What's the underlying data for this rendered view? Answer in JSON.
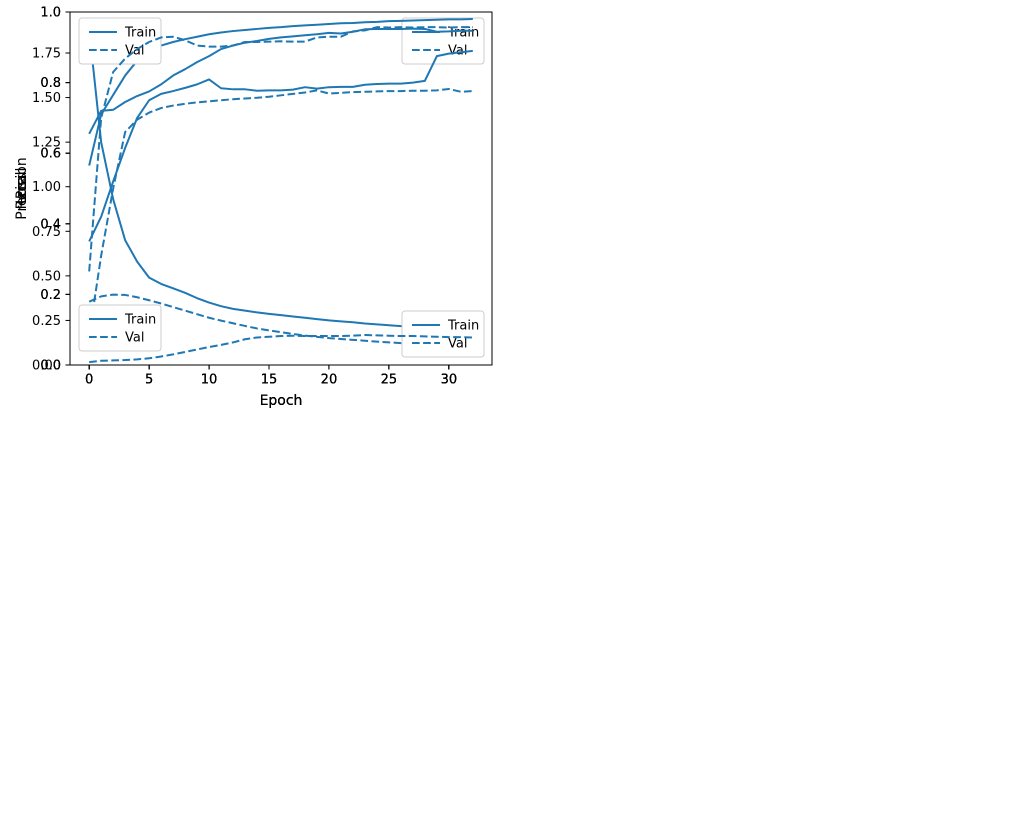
{
  "figure": {
    "background": "#ffffff",
    "description": "2x2 grid of training metric curves"
  },
  "style": {
    "line_color": "#1f77b4",
    "axis_color": "#000000",
    "text_color": "#000000",
    "legend_border": "#cccccc",
    "legend_background": "#ffffff"
  },
  "chart_data": [
    {
      "id": "loss",
      "type": "line",
      "title": "",
      "xlabel": "Epoch",
      "ylabel": "Loss",
      "grid": false,
      "xlim": [
        -1.6,
        33.6
      ],
      "ylim": [
        0.0,
        1.98
      ],
      "xtick_values": [
        0,
        5,
        10,
        15,
        20,
        25,
        30
      ],
      "xtick_labels": [
        "0",
        "5",
        "10",
        "15",
        "20",
        "25",
        "30"
      ],
      "ytick_values": [
        0.0,
        0.25,
        0.5,
        0.75,
        1.0,
        1.25,
        1.5,
        1.75
      ],
      "ytick_labels": [
        "0.00",
        "0.25",
        "0.50",
        "0.75",
        "1.00",
        "1.25",
        "1.50",
        "1.75"
      ],
      "legend_position": "top-right",
      "x": [
        0,
        1,
        2,
        3,
        4,
        5,
        6,
        7,
        8,
        9,
        10,
        11,
        12,
        13,
        14,
        15,
        16,
        17,
        18,
        19,
        20,
        21,
        22,
        23,
        24,
        25,
        26,
        27,
        28,
        29,
        30,
        31,
        32
      ],
      "series": [
        {
          "name": "Train",
          "line_style": "solid",
          "values": [
            1.88,
            1.25,
            0.93,
            0.7,
            0.58,
            0.49,
            0.455,
            0.43,
            0.405,
            0.375,
            0.35,
            0.33,
            0.315,
            0.305,
            0.295,
            0.287,
            0.28,
            0.272,
            0.265,
            0.257,
            0.25,
            0.245,
            0.24,
            0.233,
            0.228,
            0.223,
            0.218,
            0.214,
            0.211,
            0.21,
            0.208,
            0.204,
            0.201
          ]
        },
        {
          "name": "Val",
          "line_style": "dashed",
          "values": [
            0.355,
            0.385,
            0.395,
            0.393,
            0.38,
            0.363,
            0.345,
            0.325,
            0.305,
            0.285,
            0.265,
            0.249,
            0.234,
            0.219,
            0.205,
            0.194,
            0.184,
            0.174,
            0.165,
            0.158,
            0.151,
            0.146,
            0.141,
            0.136,
            0.131,
            0.127,
            0.123,
            0.119,
            0.116,
            0.112,
            0.109,
            0.104,
            0.098
          ]
        }
      ]
    },
    {
      "id": "prc",
      "type": "line",
      "title": "",
      "xlabel": "Epoch",
      "ylabel": "Prc",
      "grid": false,
      "xlim": [
        -1.6,
        33.6
      ],
      "ylim": [
        0.0,
        1.0
      ],
      "xtick_values": [
        0,
        5,
        10,
        15,
        20,
        25,
        30
      ],
      "xtick_labels": [
        "0",
        "5",
        "10",
        "15",
        "20",
        "25",
        "30"
      ],
      "ytick_values": [
        0.0,
        0.2,
        0.4,
        0.6,
        0.8,
        1.0
      ],
      "ytick_labels": [
        "0.0",
        "0.2",
        "0.4",
        "0.6",
        "0.8",
        "1.0"
      ],
      "legend_position": "bottom-right",
      "x": [
        0,
        1,
        2,
        3,
        4,
        5,
        6,
        7,
        8,
        9,
        10,
        11,
        12,
        13,
        14,
        15,
        16,
        17,
        18,
        19,
        20,
        21,
        22,
        23,
        24,
        25,
        26,
        27,
        28,
        29,
        30,
        31,
        32
      ],
      "series": [
        {
          "name": "Train",
          "line_style": "solid",
          "values": [
            0.565,
            0.71,
            0.765,
            0.82,
            0.862,
            0.89,
            0.905,
            0.915,
            0.923,
            0.93,
            0.937,
            0.942,
            0.946,
            0.949,
            0.952,
            0.955,
            0.957,
            0.96,
            0.962,
            0.964,
            0.966,
            0.968,
            0.969,
            0.971,
            0.972,
            0.974,
            0.975,
            0.976,
            0.977,
            0.978,
            0.979,
            0.979,
            0.98
          ]
        },
        {
          "name": "Val",
          "line_style": "dashed",
          "values": [
            0.085,
            0.31,
            0.5,
            0.66,
            0.695,
            0.715,
            0.728,
            0.735,
            0.74,
            0.744,
            0.747,
            0.75,
            0.753,
            0.755,
            0.757,
            0.76,
            0.764,
            0.768,
            0.772,
            0.778,
            0.769,
            0.771,
            0.773,
            0.774,
            0.775,
            0.776,
            0.776,
            0.777,
            0.777,
            0.778,
            0.782,
            0.774,
            0.776
          ]
        }
      ]
    },
    {
      "id": "precision",
      "type": "line",
      "title": "",
      "xlabel": "Epoch",
      "ylabel": "Precision",
      "grid": false,
      "xlim": [
        -1.6,
        33.6
      ],
      "ylim": [
        0.0,
        1.0
      ],
      "xtick_values": [
        0,
        5,
        10,
        15,
        20,
        25,
        30
      ],
      "xtick_labels": [
        "0",
        "5",
        "10",
        "15",
        "20",
        "25",
        "30"
      ],
      "ytick_values": [
        0.0,
        0.2,
        0.4,
        0.6,
        0.8,
        1.0
      ],
      "ytick_labels": [
        "0.0",
        "0.2",
        "0.4",
        "0.6",
        "0.8",
        "1.0"
      ],
      "legend_position": "top-left",
      "x": [
        0,
        1,
        2,
        3,
        4,
        5,
        6,
        7,
        8,
        9,
        10,
        11,
        12,
        13,
        14,
        15,
        16,
        17,
        18,
        19,
        20,
        21,
        22,
        23,
        24,
        25,
        26,
        27,
        28,
        29,
        30,
        31,
        32
      ],
      "series": [
        {
          "name": "Train",
          "line_style": "solid",
          "values": [
            0.655,
            0.72,
            0.723,
            0.745,
            0.762,
            0.775,
            0.795,
            0.82,
            0.838,
            0.858,
            0.875,
            0.895,
            0.905,
            0.913,
            0.918,
            0.924,
            0.928,
            0.931,
            0.934,
            0.937,
            0.941,
            0.939,
            0.944,
            0.951,
            0.952,
            0.952,
            0.952,
            0.953,
            0.952,
            0.944,
            0.945,
            0.947,
            0.947
          ]
        },
        {
          "name": "Val",
          "line_style": "dashed",
          "values": [
            0.008,
            0.012,
            0.013,
            0.014,
            0.016,
            0.019,
            0.024,
            0.03,
            0.037,
            0.044,
            0.051,
            0.057,
            0.064,
            0.073,
            0.078,
            0.08,
            0.082,
            0.083,
            0.082,
            0.082,
            0.082,
            0.082,
            0.083,
            0.085,
            0.084,
            0.083,
            0.082,
            0.082,
            0.081,
            0.08,
            0.079,
            0.079,
            0.078
          ]
        }
      ]
    },
    {
      "id": "recall",
      "type": "line",
      "title": "",
      "xlabel": "Epoch",
      "ylabel": "Recall",
      "grid": false,
      "xlim": [
        -1.6,
        33.6
      ],
      "ylim": [
        0.0,
        1.0
      ],
      "xtick_values": [
        0,
        5,
        10,
        15,
        20,
        25,
        30
      ],
      "xtick_labels": [
        "0",
        "5",
        "10",
        "15",
        "20",
        "25",
        "30"
      ],
      "ytick_values": [
        0.0,
        0.2,
        0.4,
        0.6,
        0.8,
        1.0
      ],
      "ytick_labels": [
        "0.0",
        "0.2",
        "0.4",
        "0.6",
        "0.8",
        "1.0"
      ],
      "legend_position": "bottom-left",
      "x": [
        0,
        1,
        2,
        3,
        4,
        5,
        6,
        7,
        8,
        9,
        10,
        11,
        12,
        13,
        14,
        15,
        16,
        17,
        18,
        19,
        20,
        21,
        22,
        23,
        24,
        25,
        26,
        27,
        28,
        29,
        30,
        31,
        32
      ],
      "series": [
        {
          "name": "Train",
          "line_style": "solid",
          "values": [
            0.35,
            0.42,
            0.52,
            0.615,
            0.7,
            0.75,
            0.768,
            0.776,
            0.785,
            0.795,
            0.809,
            0.784,
            0.781,
            0.781,
            0.777,
            0.778,
            0.778,
            0.78,
            0.787,
            0.783,
            0.787,
            0.788,
            0.788,
            0.794,
            0.796,
            0.797,
            0.797,
            0.8,
            0.805,
            0.875,
            0.882,
            0.886,
            0.89
          ]
        },
        {
          "name": "Val",
          "line_style": "dashed",
          "values": [
            0.265,
            0.7,
            0.83,
            0.868,
            0.895,
            0.915,
            0.928,
            0.93,
            0.92,
            0.905,
            0.902,
            0.902,
            0.905,
            0.915,
            0.915,
            0.916,
            0.917,
            0.916,
            0.916,
            0.928,
            0.93,
            0.93,
            0.945,
            0.948,
            0.957,
            0.956,
            0.957,
            0.956,
            0.957,
            0.957,
            0.956,
            0.957,
            0.957
          ]
        }
      ]
    }
  ]
}
